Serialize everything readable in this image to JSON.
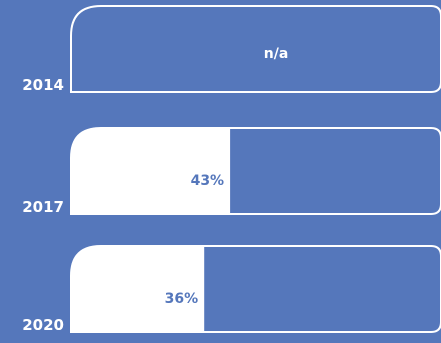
{
  "chart_data": {
    "type": "bar",
    "orientation": "horizontal",
    "categories": [
      "2014",
      "2017",
      "2020"
    ],
    "values": [
      null,
      43,
      36
    ],
    "value_labels": [
      "n/a",
      "43%",
      "36%"
    ],
    "ylim": [
      0,
      100
    ],
    "grid": false,
    "legend": "none",
    "colors": {
      "background": "#5577bb",
      "bar_fill": "#ffffff",
      "outline": "#ffffff",
      "label_on_fill": "#5577bb",
      "label_on_empty": "#ffffff"
    }
  }
}
